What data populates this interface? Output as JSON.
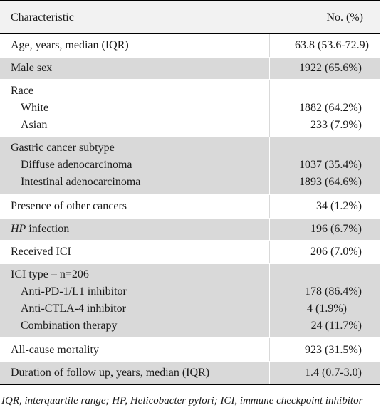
{
  "header": {
    "characteristic": "Characteristic",
    "value": "No. (%)"
  },
  "rows": [
    {
      "label": "Age, years, median (IQR)",
      "value": "63.8 (53.6-72.9)"
    },
    {
      "label": "Male sex",
      "value": "1922 (65.6%)"
    },
    {
      "label": "Race",
      "white": "White",
      "white_value": "1882 (64.2%)",
      "asian": "Asian",
      "asian_value": "233 (7.9%)"
    },
    {
      "label": "Gastric cancer subtype",
      "diffuse": "Diffuse adenocarcinoma",
      "diffuse_value": "1037 (35.4%)",
      "intestinal": "Intestinal adenocarcinoma",
      "intestinal_value": "1893 (64.6%)"
    },
    {
      "label": "Presence of other cancers",
      "value": "34 (1.2%)"
    },
    {
      "label_italic": "HP",
      "label_rest": " infection",
      "value": "196 (6.7%)"
    },
    {
      "label": "Received ICI",
      "value": "206 (7.0%)"
    },
    {
      "label": "ICI type – n=206",
      "pd1": "Anti-PD-1/L1 inhibitor",
      "pd1_value": "178 (86.4%)",
      "ctla4": "Anti-CTLA-4 inhibitor",
      "ctla4_value": "4 (1.9%)",
      "combo": "Combination therapy",
      "combo_value": "24 (11.7%)"
    },
    {
      "label": "All-cause mortality",
      "value": "923 (31.5%)"
    },
    {
      "label": "Duration of follow up, years, median (IQR)",
      "value": "1.4 (0.7-3.0)"
    }
  ],
  "footnote": "IQR, interquartile range; HP, Helicobacter pylori; ICI, immune checkpoint inhibitor",
  "colors": {
    "shaded_row": "#d9d9d9",
    "white_row": "#ffffff",
    "rule": "#000000"
  }
}
